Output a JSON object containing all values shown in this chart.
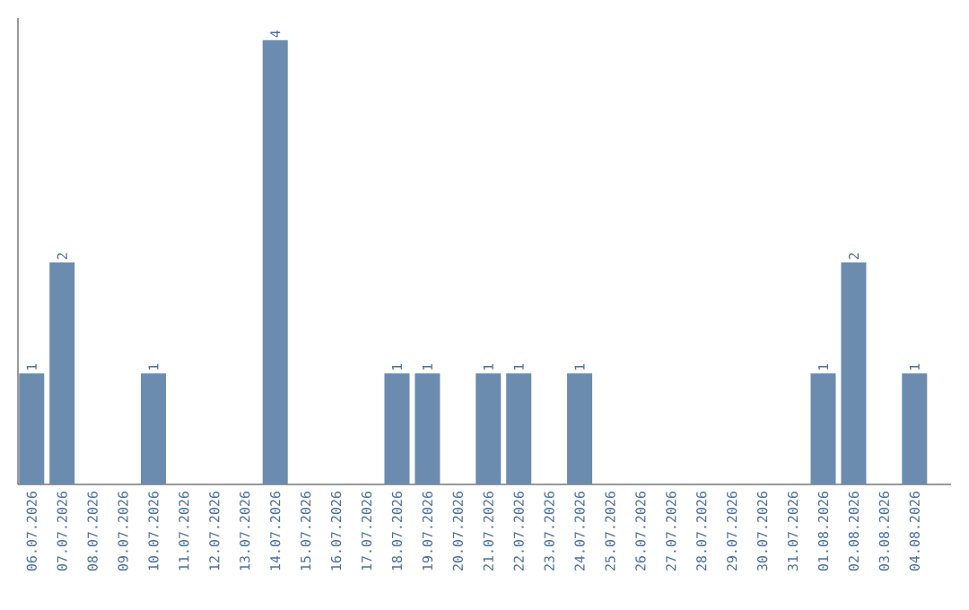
{
  "chart_data": {
    "type": "bar",
    "categories": [
      "06.07.2026",
      "07.07.2026",
      "08.07.2026",
      "09.07.2026",
      "10.07.2026",
      "11.07.2026",
      "12.07.2026",
      "13.07.2026",
      "14.07.2026",
      "15.07.2026",
      "16.07.2026",
      "17.07.2026",
      "18.07.2026",
      "19.07.2026",
      "20.07.2026",
      "21.07.2026",
      "22.07.2026",
      "23.07.2026",
      "24.07.2026",
      "25.07.2026",
      "26.07.2026",
      "27.07.2026",
      "28.07.2026",
      "29.07.2026",
      "30.07.2026",
      "31.07.2026",
      "01.08.2026",
      "02.08.2026",
      "03.08.2026",
      "04.08.2026"
    ],
    "values": [
      1,
      2,
      0,
      0,
      1,
      0,
      0,
      0,
      4,
      0,
      0,
      0,
      1,
      1,
      0,
      1,
      1,
      0,
      1,
      0,
      0,
      0,
      0,
      0,
      0,
      0,
      1,
      2,
      0,
      1
    ],
    "value_labels": [
      "1",
      "2",
      null,
      null,
      "1",
      null,
      null,
      null,
      "4",
      null,
      null,
      null,
      "1",
      "1",
      null,
      "1",
      "1",
      null,
      "1",
      null,
      null,
      null,
      null,
      null,
      null,
      null,
      "1",
      "2",
      null,
      "1"
    ],
    "color": "#6b8cae",
    "ylim": [
      0,
      4.2
    ],
    "tick_labels": "x"
  }
}
